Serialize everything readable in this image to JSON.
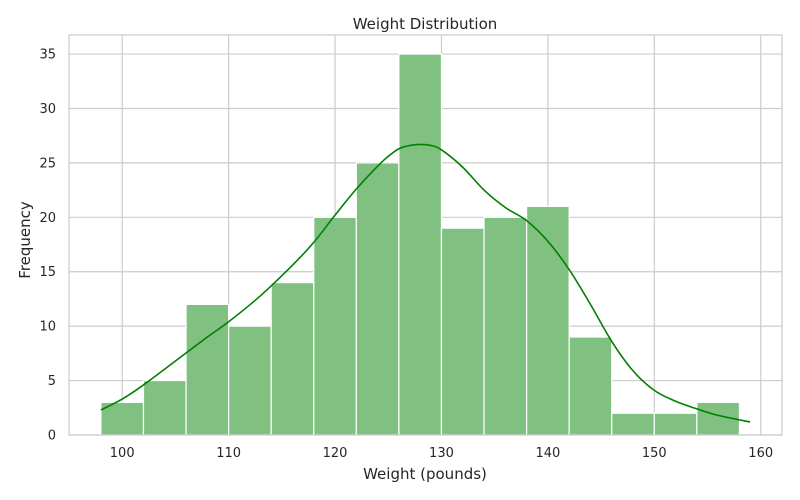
{
  "chart_data": {
    "type": "bar",
    "title": "Weight Distribution",
    "xlabel": "Weight (pounds)",
    "ylabel": "Frequency",
    "xlim": [
      95,
      162
    ],
    "ylim": [
      0,
      36.75
    ],
    "xticks": [
      100,
      110,
      120,
      130,
      140,
      150,
      160
    ],
    "yticks": [
      0,
      5,
      10,
      15,
      20,
      25,
      30,
      35
    ],
    "grid": true,
    "bar_color": "#80c080",
    "kde_color": "#008000",
    "bins": [
      {
        "x0": 98,
        "x1": 102,
        "count": 3
      },
      {
        "x0": 102,
        "x1": 106,
        "count": 5
      },
      {
        "x0": 106,
        "x1": 110,
        "count": 12
      },
      {
        "x0": 110,
        "x1": 114,
        "count": 10
      },
      {
        "x0": 114,
        "x1": 118,
        "count": 14
      },
      {
        "x0": 118,
        "x1": 122,
        "count": 20
      },
      {
        "x0": 122,
        "x1": 126,
        "count": 25
      },
      {
        "x0": 126,
        "x1": 130,
        "count": 35
      },
      {
        "x0": 130,
        "x1": 134,
        "count": 19
      },
      {
        "x0": 134,
        "x1": 138,
        "count": 20
      },
      {
        "x0": 138,
        "x1": 142,
        "count": 21
      },
      {
        "x0": 142,
        "x1": 146,
        "count": 9
      },
      {
        "x0": 146,
        "x1": 150,
        "count": 2
      },
      {
        "x0": 150,
        "x1": 154,
        "count": 2
      },
      {
        "x0": 154,
        "x1": 158,
        "count": 3
      }
    ],
    "kde": {
      "x": [
        98,
        100,
        102,
        105,
        108,
        110,
        113,
        116,
        118,
        120,
        122,
        124,
        125,
        126,
        127,
        128,
        129,
        130,
        132,
        134,
        136,
        138,
        140,
        142,
        144,
        146,
        148,
        150,
        152,
        154,
        156,
        159
      ],
      "y": [
        2.3,
        3.3,
        4.6,
        6.8,
        9.0,
        10.4,
        12.8,
        15.6,
        17.7,
        20.2,
        22.6,
        24.7,
        25.6,
        26.3,
        26.6,
        26.7,
        26.6,
        26.2,
        24.6,
        22.5,
        20.9,
        19.7,
        17.8,
        15.2,
        12.0,
        8.6,
        5.9,
        4.1,
        3.1,
        2.4,
        1.8,
        1.2
      ]
    }
  }
}
